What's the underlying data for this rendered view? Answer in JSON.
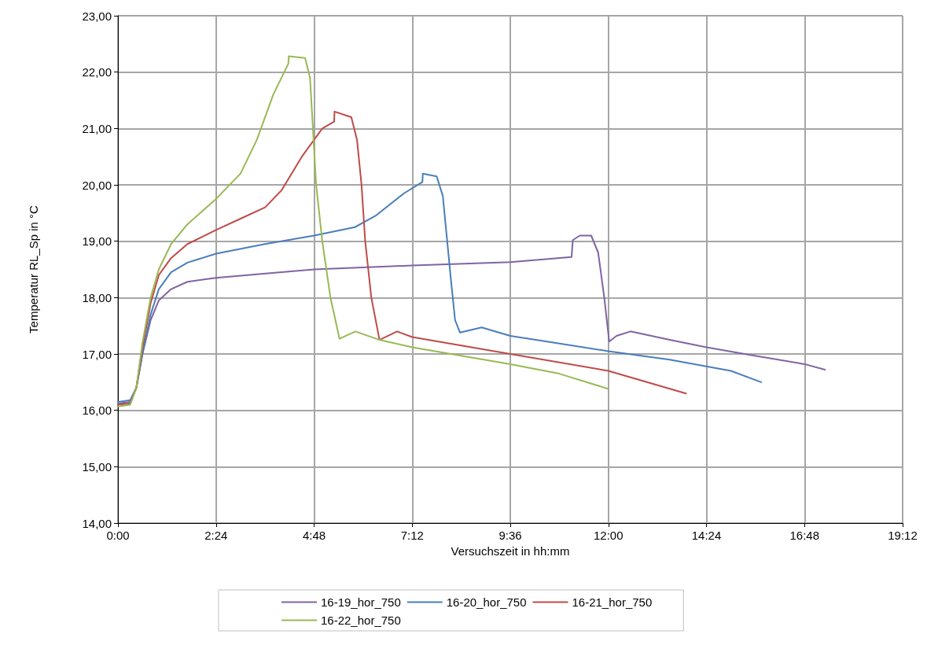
{
  "chart_data": {
    "type": "line",
    "xlabel": "Versuchszeit in hh:mm",
    "ylabel": "Temperatur RL_Sp in °C",
    "xlim": [
      0,
      19.2
    ],
    "xticks": [
      {
        "value": 0,
        "label": "0:00"
      },
      {
        "value": 2.4,
        "label": "2:24"
      },
      {
        "value": 4.8,
        "label": "4:48"
      },
      {
        "value": 7.2,
        "label": "7:12"
      },
      {
        "value": 9.6,
        "label": "9:36"
      },
      {
        "value": 12,
        "label": "12:00"
      },
      {
        "value": 14.4,
        "label": "14:24"
      },
      {
        "value": 16.8,
        "label": "16:48"
      },
      {
        "value": 19.2,
        "label": "19:12"
      }
    ],
    "ylim": [
      14,
      23
    ],
    "yticks": [
      {
        "value": 14,
        "label": "14,00"
      },
      {
        "value": 15,
        "label": "15,00"
      },
      {
        "value": 16,
        "label": "16,00"
      },
      {
        "value": 17,
        "label": "17,00"
      },
      {
        "value": 18,
        "label": "18,00"
      },
      {
        "value": 19,
        "label": "19,00"
      },
      {
        "value": 20,
        "label": "20,00"
      },
      {
        "value": 21,
        "label": "21,00"
      },
      {
        "value": 22,
        "label": "22,00"
      },
      {
        "value": 23,
        "label": "23,00"
      }
    ],
    "grid": true,
    "legend": "bottom",
    "marker": "none",
    "line_style": "solid",
    "series": [
      {
        "name": "16-19_hor_750",
        "color": "#8064a2",
        "x": [
          0,
          0.3,
          0.45,
          0.6,
          0.8,
          1.0,
          1.3,
          1.7,
          2.4,
          3.5,
          4.8,
          7.2,
          9.6,
          11.1,
          11.13,
          11.3,
          11.58,
          11.75,
          11.9,
          12.02,
          12.2,
          12.54,
          13.5,
          14.4,
          15.5,
          16.8,
          17.3
        ],
        "values": [
          16.12,
          16.15,
          16.4,
          17.0,
          17.6,
          17.95,
          18.15,
          18.28,
          18.35,
          18.42,
          18.5,
          18.57,
          18.63,
          18.72,
          19.02,
          19.1,
          19.1,
          18.8,
          18.0,
          17.22,
          17.32,
          17.4,
          17.25,
          17.12,
          16.98,
          16.82,
          16.72
        ]
      },
      {
        "name": "16-20_hor_750",
        "color": "#4a7ebb",
        "x": [
          0,
          0.3,
          0.45,
          0.6,
          0.8,
          1.0,
          1.3,
          1.7,
          2.4,
          3.6,
          4.8,
          5.8,
          6.3,
          7.0,
          7.45,
          7.46,
          7.8,
          7.95,
          8.15,
          8.25,
          8.37,
          8.9,
          9.6,
          10.5,
          12.0,
          13.5,
          15.0,
          15.74
        ],
        "values": [
          16.15,
          16.18,
          16.4,
          17.0,
          17.7,
          18.15,
          18.45,
          18.62,
          18.78,
          18.95,
          19.1,
          19.25,
          19.45,
          19.85,
          20.05,
          20.2,
          20.15,
          19.8,
          18.3,
          17.6,
          17.38,
          17.47,
          17.32,
          17.22,
          17.05,
          16.9,
          16.7,
          16.5
        ]
      },
      {
        "name": "16-21_hor_750",
        "color": "#be4b48",
        "x": [
          0,
          0.3,
          0.45,
          0.6,
          0.8,
          1.0,
          1.3,
          1.7,
          2.4,
          3.0,
          3.6,
          4.0,
          4.5,
          5.0,
          5.29,
          5.3,
          5.71,
          5.85,
          5.96,
          6.05,
          6.2,
          6.4,
          6.83,
          7.2,
          8.4,
          9.6,
          12.0,
          13.9
        ],
        "values": [
          16.1,
          16.12,
          16.4,
          17.1,
          17.9,
          18.4,
          18.7,
          18.95,
          19.2,
          19.4,
          19.6,
          19.9,
          20.5,
          21.0,
          21.12,
          21.3,
          21.2,
          20.8,
          20.0,
          19.0,
          18.0,
          17.25,
          17.4,
          17.3,
          17.15,
          17.0,
          16.7,
          16.3
        ]
      },
      {
        "name": "16-22_hor_750",
        "color": "#98b954",
        "x": [
          0,
          0.3,
          0.45,
          0.6,
          0.8,
          1.0,
          1.3,
          1.7,
          2.4,
          3.0,
          3.4,
          3.8,
          4.17,
          4.18,
          4.58,
          4.7,
          4.85,
          5.0,
          5.2,
          5.42,
          5.81,
          6.4,
          7.2,
          8.4,
          9.6,
          10.8,
          12.0
        ],
        "values": [
          16.07,
          16.1,
          16.4,
          17.2,
          18.0,
          18.5,
          18.95,
          19.3,
          19.75,
          20.2,
          20.8,
          21.6,
          22.15,
          22.28,
          22.25,
          21.9,
          20.0,
          19.0,
          18.0,
          17.27,
          17.4,
          17.25,
          17.12,
          16.97,
          16.82,
          16.65,
          16.38
        ]
      }
    ]
  }
}
